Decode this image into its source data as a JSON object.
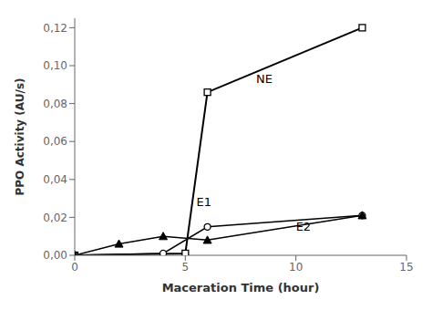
{
  "chart_data": {
    "type": "line",
    "xlabel": "Maceration Time (hour)",
    "ylabel": "PPO Activity (AU/s)",
    "xlim": [
      0,
      15
    ],
    "ylim": [
      0.0,
      0.125
    ],
    "xticks": [
      0,
      5,
      10,
      15
    ],
    "yticks": [
      {
        "value": 0.0,
        "label": "0,00"
      },
      {
        "value": 0.02,
        "label": "0,02"
      },
      {
        "value": 0.04,
        "label": "0,04"
      },
      {
        "value": 0.06,
        "label": "0,06"
      },
      {
        "value": 0.08,
        "label": "0,08"
      },
      {
        "value": 0.1,
        "label": "0,10"
      },
      {
        "value": 0.12,
        "label": "0,12"
      }
    ],
    "grid": false,
    "series": [
      {
        "x": [
          0,
          5,
          6,
          13
        ],
        "values": [
          0.0,
          0.001,
          0.086,
          0.12
        ],
        "color": "#000000",
        "marker": "open_square",
        "line_style": "solid"
      },
      {
        "x": [
          0,
          4,
          6,
          13
        ],
        "values": [
          0.0,
          0.001,
          0.015,
          0.021
        ],
        "color": "#000000",
        "marker": "open_circle",
        "line_style": "solid"
      },
      {
        "x": [
          0,
          2,
          4,
          6,
          13
        ],
        "values": [
          0.0,
          0.006,
          0.01,
          0.008,
          0.021
        ],
        "color": "#000000",
        "marker": "filled_triangle",
        "line_style": "solid"
      }
    ],
    "annotations": [
      {
        "text": "NE",
        "x": 8.2,
        "y": 0.091
      },
      {
        "text": "E1",
        "x": 5.5,
        "y": 0.026
      },
      {
        "text": "E2",
        "x": 10.0,
        "y": 0.013
      }
    ]
  }
}
